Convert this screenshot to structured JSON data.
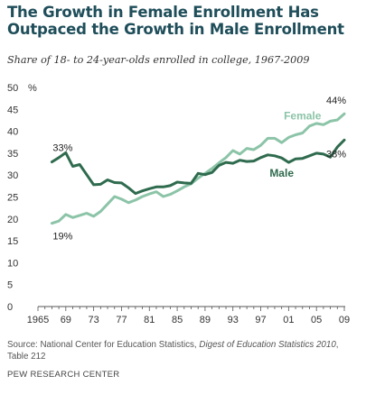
{
  "header": {
    "title": "The Growth in Female Enrollment Has Outpaced the Growth in Male Enrollment",
    "subtitle": "Share of 18- to 24-year-olds enrolled in college, 1967-2009"
  },
  "footer": {
    "source_prefix": "Source: National Center for Education Statistics, ",
    "source_italic": "Digest of Education Statistics 2010",
    "source_suffix": ", Table 212",
    "org": "PEW RESEARCH CENTER"
  },
  "colors": {
    "female": "#8cc4a8",
    "male": "#2f6b4e",
    "axis": "#555555"
  },
  "chart_data": {
    "type": "line",
    "title": "The Growth in Female Enrollment Has Outpaced the Growth in Male Enrollment",
    "subtitle": "Share of 18- to 24-year-olds enrolled in college, 1967-2009",
    "xlabel": "",
    "ylabel": "%",
    "xlim": [
      1965,
      2009
    ],
    "ylim": [
      0,
      50
    ],
    "grid": false,
    "y_ticks": [
      0,
      5,
      10,
      15,
      20,
      25,
      30,
      35,
      40,
      45,
      50
    ],
    "y_unit_label": "%",
    "x_ticks": [
      1965,
      1969,
      1973,
      1977,
      1981,
      1985,
      1989,
      1993,
      1997,
      2001,
      2005,
      2009
    ],
    "x_tick_labels": [
      "1965",
      "69",
      "73",
      "77",
      "81",
      "85",
      "89",
      "93",
      "97",
      "01",
      "05",
      "09"
    ],
    "x": [
      1967,
      1968,
      1969,
      1970,
      1971,
      1972,
      1973,
      1974,
      1975,
      1976,
      1977,
      1978,
      1979,
      1980,
      1981,
      1982,
      1983,
      1984,
      1985,
      1986,
      1987,
      1988,
      1989,
      1990,
      1991,
      1992,
      1993,
      1994,
      1995,
      1996,
      1997,
      1998,
      1999,
      2000,
      2001,
      2002,
      2003,
      2004,
      2005,
      2006,
      2007,
      2008,
      2009
    ],
    "series": [
      {
        "name": "Female",
        "values": [
          19.0,
          19.5,
          21.0,
          20.3,
          20.8,
          21.3,
          20.6,
          21.7,
          23.4,
          25.1,
          24.5,
          23.7,
          24.3,
          25.1,
          25.7,
          26.2,
          25.1,
          25.6,
          26.4,
          27.3,
          28.0,
          29.3,
          30.4,
          31.5,
          32.8,
          34.0,
          35.6,
          34.8,
          36.1,
          35.8,
          36.8,
          38.4,
          38.4,
          37.4,
          38.6,
          39.2,
          39.6,
          41.2,
          41.8,
          41.5,
          42.3,
          42.6,
          44.0
        ]
      },
      {
        "name": "Male",
        "values": [
          33.0,
          34.0,
          35.1,
          32.0,
          32.4,
          30.1,
          27.8,
          27.9,
          28.9,
          28.3,
          28.2,
          27.1,
          25.8,
          26.4,
          26.9,
          27.3,
          27.3,
          27.6,
          28.4,
          28.2,
          28.1,
          30.4,
          30.1,
          30.6,
          32.2,
          32.9,
          32.7,
          33.4,
          33.1,
          33.2,
          34.0,
          34.6,
          34.4,
          33.9,
          32.9,
          33.7,
          33.8,
          34.4,
          35.0,
          34.8,
          34.1,
          36.4,
          38.0
        ]
      }
    ],
    "series_labels": {
      "female": "Female",
      "male": "Male"
    },
    "annotations": {
      "female_start": "19%",
      "female_end": "44%",
      "male_start": "33%",
      "male_end": "38%"
    }
  }
}
